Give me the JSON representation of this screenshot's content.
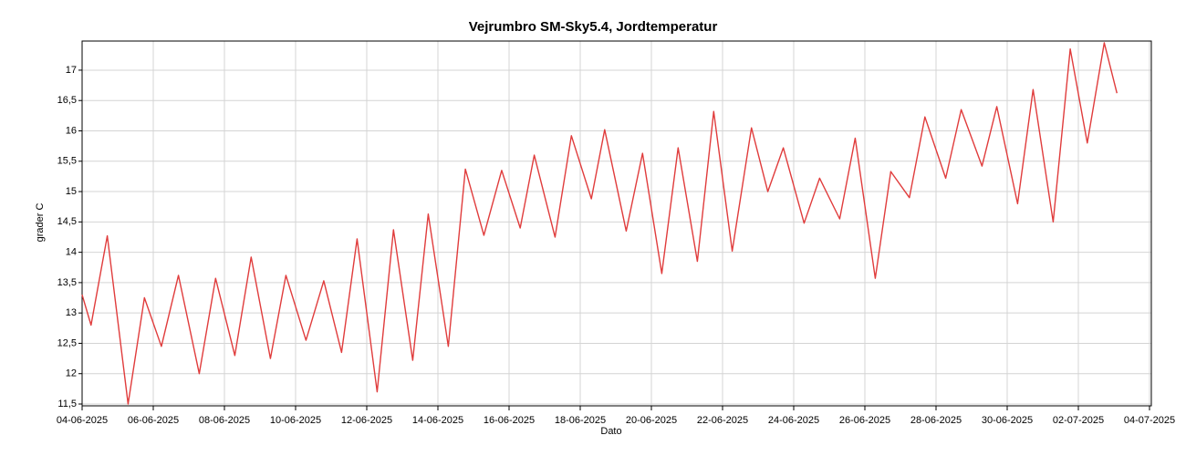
{
  "chart_data": {
    "type": "line",
    "title": "Vejrumbro SM-Sky5.4, Jordtemperatur",
    "x_label": "Dato",
    "y_label": "grader C",
    "x": [
      "04-06-2025 00:00",
      "04-06-2025 06:00",
      "04-06-2025 17:00",
      "05-06-2025 07:00",
      "05-06-2025 18:00",
      "06-06-2025 05:30",
      "06-06-2025 17:00",
      "07-06-2025 07:00",
      "07-06-2025 18:00",
      "08-06-2025 07:00",
      "08-06-2025 18:00",
      "09-06-2025 07:00",
      "09-06-2025 17:30",
      "10-06-2025 07:00",
      "10-06-2025 19:00",
      "11-06-2025 07:00",
      "11-06-2025 17:30",
      "12-06-2025 07:00",
      "12-06-2025 18:00",
      "13-06-2025 07:00",
      "13-06-2025 17:30",
      "14-06-2025 07:00",
      "14-06-2025 18:30",
      "15-06-2025 07:00",
      "15-06-2025 19:00",
      "16-06-2025 07:30",
      "16-06-2025 17:00",
      "17-06-2025 07:00",
      "17-06-2025 18:00",
      "18-06-2025 07:30",
      "18-06-2025 16:30",
      "19-06-2025 07:00",
      "19-06-2025 18:00",
      "20-06-2025 07:00",
      "20-06-2025 18:00",
      "21-06-2025 07:00",
      "21-06-2025 18:00",
      "22-06-2025 06:30",
      "22-06-2025 19:30",
      "23-06-2025 06:30",
      "23-06-2025 17:00",
      "24-06-2025 07:00",
      "24-06-2025 17:30",
      "25-06-2025 07:00",
      "25-06-2025 17:30",
      "26-06-2025 07:00",
      "26-06-2025 17:30",
      "27-06-2025 06:00",
      "27-06-2025 16:30",
      "28-06-2025 06:30",
      "28-06-2025 17:00",
      "29-06-2025 07:00",
      "29-06-2025 17:00",
      "30-06-2025 07:00",
      "30-06-2025 17:30",
      "01-07-2025 07:00",
      "01-07-2025 18:30",
      "02-07-2025 06:00",
      "02-07-2025 17:30",
      "03-07-2025 02:00"
    ],
    "series": [
      {
        "color": "#e03c3c",
        "values": [
          13.3,
          12.8,
          14.27,
          11.5,
          13.25,
          12.45,
          13.62,
          12.0,
          13.57,
          12.3,
          13.92,
          12.25,
          13.62,
          12.55,
          13.53,
          12.35,
          14.22,
          11.7,
          14.37,
          12.22,
          14.63,
          12.45,
          15.37,
          14.28,
          15.35,
          14.4,
          15.6,
          14.25,
          15.92,
          14.88,
          16.02,
          14.35,
          15.63,
          13.65,
          15.72,
          13.85,
          16.32,
          14.02,
          16.05,
          15.0,
          15.72,
          14.48,
          15.22,
          14.55,
          15.88,
          13.57,
          15.33,
          14.9,
          16.23,
          15.22,
          16.35,
          15.42,
          16.4,
          14.8,
          16.68,
          14.5,
          17.35,
          15.8,
          17.45,
          16.62
        ]
      }
    ],
    "xlim": [
      "04-06-2025",
      "04-07-2025"
    ],
    "xticks": [
      "04-06-2025",
      "06-06-2025",
      "08-06-2025",
      "10-06-2025",
      "12-06-2025",
      "14-06-2025",
      "16-06-2025",
      "18-06-2025",
      "20-06-2025",
      "22-06-2025",
      "24-06-2025",
      "26-06-2025",
      "28-06-2025",
      "30-06-2025",
      "02-07-2025",
      "04-07-2025"
    ],
    "ylim": [
      11.47,
      17.48
    ],
    "yticks": [
      {
        "value": 11.5,
        "label": "11,5"
      },
      12,
      {
        "value": 12.5,
        "label": "12,5"
      },
      13,
      {
        "value": 13.5,
        "label": "13,5"
      },
      14,
      {
        "value": 14.5,
        "label": "14,5"
      },
      15,
      {
        "value": 15.5,
        "label": "15,5"
      },
      16,
      {
        "value": 16.5,
        "label": "16,5"
      },
      17
    ],
    "grid": true
  }
}
